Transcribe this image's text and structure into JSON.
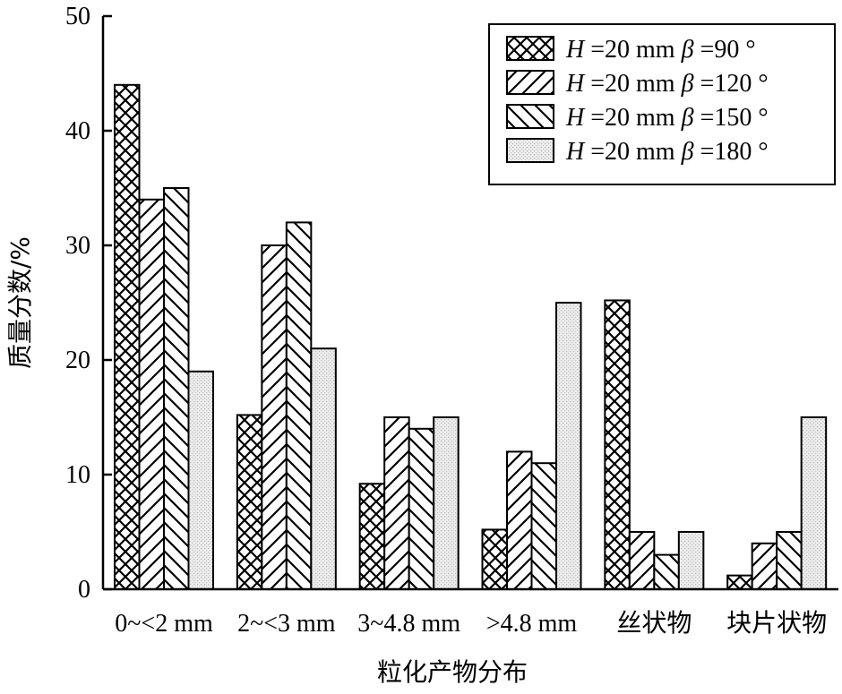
{
  "chart_data": {
    "type": "bar",
    "categories": [
      "0~<2 mm",
      "2~<3 mm",
      "3~4.8 mm",
      ">4.8 mm",
      "丝状物",
      "块片状物"
    ],
    "series": [
      {
        "name": "H =20 mm β =90 °",
        "name_parts": {
          "h": "H",
          "h_val": " =20 mm ",
          "b": "β",
          "b_val": " =90 °"
        },
        "values": [
          44,
          15.2,
          9.2,
          5.2,
          25.2,
          1.2
        ]
      },
      {
        "name": "H =20 mm β =120 °",
        "name_parts": {
          "h": "H",
          "h_val": " =20 mm ",
          "b": "β",
          "b_val": " =120 °"
        },
        "values": [
          34,
          30,
          15,
          12,
          5,
          4
        ]
      },
      {
        "name": "H =20 mm β =150 °",
        "name_parts": {
          "h": "H",
          "h_val": " =20 mm ",
          "b": "β",
          "b_val": " =150 °"
        },
        "values": [
          35,
          32,
          14,
          11,
          3,
          5
        ]
      },
      {
        "name": "H =20 mm β =180 °",
        "name_parts": {
          "h": "H",
          "h_val": " =20 mm ",
          "b": "β",
          "b_val": " =180 °"
        },
        "values": [
          19,
          21,
          15,
          25,
          5,
          15
        ]
      }
    ],
    "patterns": [
      "crosshatch",
      "diagonal-up",
      "diagonal-down",
      "dotted-light"
    ],
    "title": "",
    "xlabel": "粒化产物分布",
    "ylabel": "质量分数/%",
    "ylim": [
      0,
      50
    ],
    "yticks": [
      0,
      10,
      20,
      30,
      40,
      50
    ],
    "grid": false,
    "legend_position": "top-right"
  }
}
